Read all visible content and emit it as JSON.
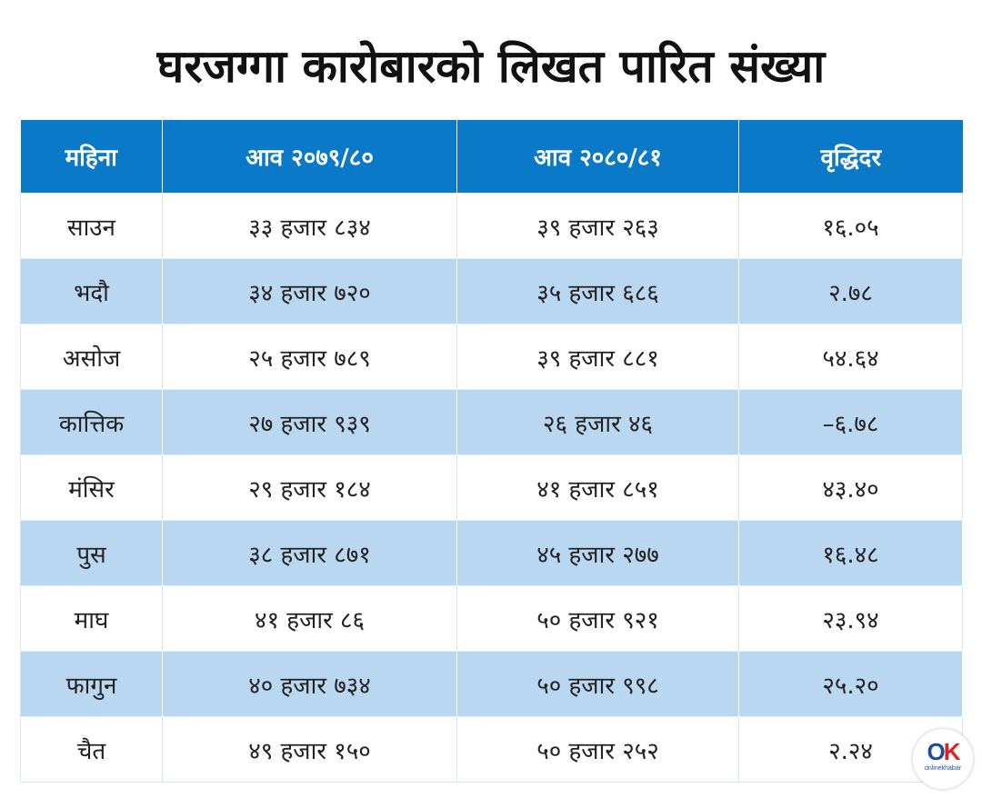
{
  "chart_data": {
    "type": "table",
    "title": "घरजग्गा कारोबारको लिखत पारित संख्या",
    "columns": [
      "महिना",
      "आव २०७९/८०",
      "आव २०८०/८१",
      "वृद्धिदर"
    ],
    "rows": [
      [
        "साउन",
        "३३ हजार ८३४",
        "३९ हजार २६३",
        "१६.०५"
      ],
      [
        "भदौ",
        "३४ हजार ७२०",
        "३५ हजार ६८६",
        "२.७८"
      ],
      [
        "असोज",
        "२५ हजार ७८९",
        "३९ हजार ८८१",
        "५४.६४"
      ],
      [
        "कात्तिक",
        "२७ हजार ९३९",
        "२६ हजार ४६",
        "–६.७८"
      ],
      [
        "मंसिर",
        "२९ हजार १८४",
        "४१ हजार ८५१",
        "४३.४०"
      ],
      [
        "पुस",
        "३८ हजार ८७१",
        "४५ हजार २७७",
        "१६.४८"
      ],
      [
        "माघ",
        "४१ हजार ८६",
        "५० हजार ९२१",
        "२३.९४"
      ],
      [
        "फागुन",
        "४० हजार ७३४",
        "५० हजार ९९८",
        "२५.२०"
      ],
      [
        "चैत",
        "४९ हजार १५०",
        "५० हजार २५२",
        "२.२४"
      ]
    ]
  },
  "logo": {
    "mark_left": "O",
    "mark_right": "K",
    "text": "onlinekhabar"
  },
  "colors": {
    "header_bg": "#0a79c7",
    "stripe_bg": "#b9d7f0",
    "logo_blue": "#1b4f9c",
    "logo_red": "#e02020"
  }
}
